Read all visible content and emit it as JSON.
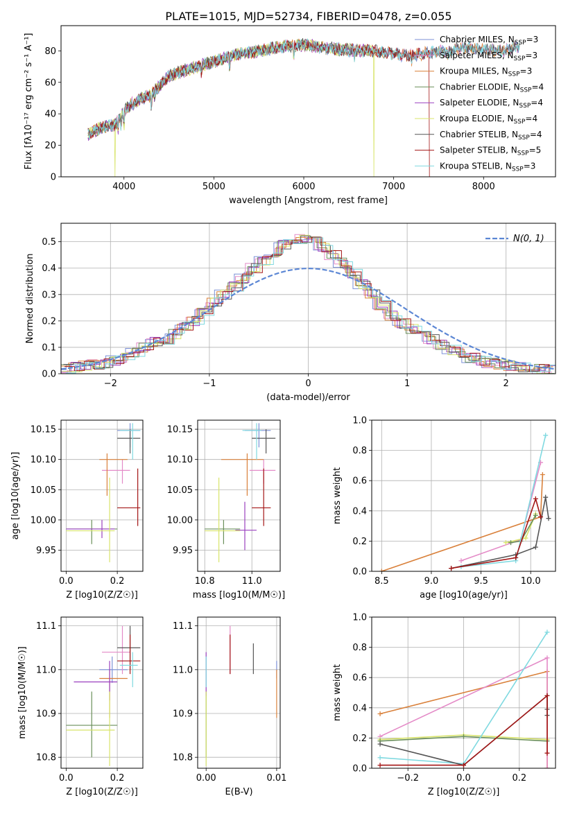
{
  "page_title": "PLATE=1015, MJD=52734, FIBERID=0478, z=0.055",
  "colors": {
    "Chabrier MILES": "#7b8fd6",
    "Salpeter MILES": "#e48ac7",
    "Kroupa MILES": "#d9803a",
    "Chabrier ELODIE": "#6a8f5a",
    "Salpeter ELODIE": "#9a3fbf",
    "Kroupa ELODIE": "#d8e46a",
    "Chabrier STELIB": "#555555",
    "Salpeter STELIB": "#a31515",
    "Kroupa STELIB": "#7fd9e0",
    "normal": "#5b86d4"
  },
  "legend_models": [
    {
      "key": "Chabrier MILES",
      "label": "Chabrier MILES, N",
      "sub": "SSP",
      "n": "=3"
    },
    {
      "key": "Salpeter MILES",
      "label": "Salpeter MILES, N",
      "sub": "SSP",
      "n": "=3"
    },
    {
      "key": "Kroupa MILES",
      "label": "Kroupa MILES, N",
      "sub": "SSP",
      "n": "=3"
    },
    {
      "key": "Chabrier ELODIE",
      "label": "Chabrier ELODIE, N",
      "sub": "SSP",
      "n": "=4"
    },
    {
      "key": "Salpeter ELODIE",
      "label": "Salpeter ELODIE, N",
      "sub": "SSP",
      "n": "=4"
    },
    {
      "key": "Kroupa ELODIE",
      "label": "Kroupa ELODIE, N",
      "sub": "SSP",
      "n": "=4"
    },
    {
      "key": "Chabrier STELIB",
      "label": "Chabrier STELIB, N",
      "sub": "SSP",
      "n": "=4"
    },
    {
      "key": "Salpeter STELIB",
      "label": "Salpeter STELIB, N",
      "sub": "SSP",
      "n": "=5"
    },
    {
      "key": "Kroupa STELIB",
      "label": "Kroupa STELIB, N",
      "sub": "SSP",
      "n": "=3"
    }
  ],
  "chart_data": [
    {
      "id": "spectrum",
      "type": "line",
      "xlabel": "wavelength [Angstrom, rest frame]",
      "ylabel": "Flux [fλ10⁻¹⁷ erg cm⁻² s⁻¹ A⁻¹]",
      "xlim": [
        3300,
        8800
      ],
      "ylim": [
        0,
        96
      ],
      "xticks": [
        4000,
        5000,
        6000,
        7000,
        8000
      ],
      "yticks": [
        0,
        20,
        40,
        60,
        80
      ],
      "grid": false,
      "legend": "right",
      "continuum": {
        "x": [
          3600,
          3700,
          3800,
          3900,
          4000,
          4100,
          4200,
          4300,
          4400,
          4500,
          4600,
          4800,
          5000,
          5200,
          5400,
          5600,
          5800,
          6000,
          6200,
          6400,
          6600,
          6800,
          7000,
          7200,
          7400,
          7600,
          7800,
          8000,
          8200,
          8400
        ],
        "y": [
          27,
          30,
          32,
          33,
          42,
          47,
          50,
          52,
          58,
          64,
          66,
          70,
          73,
          77,
          79,
          81,
          83,
          84,
          82,
          81,
          80,
          80,
          78,
          77,
          79,
          80,
          82,
          81,
          80,
          83
        ]
      },
      "dropouts": [
        {
          "model": "Kroupa ELODIE",
          "x": 3900,
          "x_end": 3900
        },
        {
          "model": "Kroupa ELODIE",
          "x": 6780,
          "x_end": 6780
        },
        {
          "model": "Salpeter STELIB",
          "x": 7400,
          "x_end": 7400
        }
      ],
      "model_end": {
        "Chabrier MILES": 8400,
        "Salpeter MILES": 8400,
        "Kroupa MILES": 8400,
        "Chabrier ELODIE": 6800,
        "Salpeter ELODIE": 6800,
        "Kroupa ELODIE": 6800,
        "Chabrier STELIB": 8400,
        "Salpeter STELIB": 7400,
        "Kroupa STELIB": 8400
      }
    },
    {
      "id": "residuals",
      "type": "line",
      "xlabel": "(data-model)/error",
      "ylabel": "Normed distribution",
      "xlim": [
        -2.5,
        2.5
      ],
      "ylim": [
        0,
        0.57
      ],
      "xticks": [
        -2,
        -1,
        0,
        1,
        2
      ],
      "yticks": [
        0.0,
        0.1,
        0.2,
        0.3,
        0.4,
        0.5
      ],
      "grid": true,
      "legend": "top-right",
      "normal_label": "N(0, 1)",
      "hist_edges": [
        -2.5,
        -2.4,
        -2.3,
        -2.2,
        -2.1,
        -2.0,
        -1.9,
        -1.8,
        -1.7,
        -1.6,
        -1.5,
        -1.4,
        -1.3,
        -1.2,
        -1.1,
        -1.0,
        -0.9,
        -0.8,
        -0.7,
        -0.6,
        -0.5,
        -0.4,
        -0.3,
        -0.2,
        -0.1,
        0.0,
        0.1,
        0.2,
        0.3,
        0.4,
        0.5,
        0.6,
        0.7,
        0.8,
        0.9,
        1.0,
        1.1,
        1.2,
        1.3,
        1.4,
        1.5,
        1.6,
        1.7,
        1.8,
        1.9,
        2.0,
        2.1,
        2.2,
        2.3,
        2.4,
        2.5
      ],
      "hist_base": [
        0.02,
        0.025,
        0.03,
        0.035,
        0.04,
        0.05,
        0.06,
        0.08,
        0.1,
        0.12,
        0.13,
        0.15,
        0.18,
        0.2,
        0.23,
        0.27,
        0.3,
        0.33,
        0.36,
        0.4,
        0.43,
        0.46,
        0.49,
        0.5,
        0.51,
        0.5,
        0.48,
        0.45,
        0.42,
        0.38,
        0.34,
        0.3,
        0.26,
        0.22,
        0.19,
        0.17,
        0.15,
        0.13,
        0.11,
        0.09,
        0.08,
        0.06,
        0.05,
        0.04,
        0.035,
        0.03,
        0.025,
        0.02,
        0.018,
        0.015
      ]
    },
    {
      "id": "age-vs-Z",
      "type": "scatter",
      "xlabel": "Z [log10(Z/Z☉)]",
      "ylabel": "age  [log10(age/yr)]",
      "xlim": [
        -0.02,
        0.3
      ],
      "ylim": [
        9.915,
        10.165
      ],
      "xticks": [
        0.0,
        0.2
      ],
      "yticks": [
        9.95,
        10.0,
        10.05,
        10.1,
        10.15
      ],
      "grid": true,
      "points": [
        {
          "model": "Chabrier MILES",
          "x": 0.25,
          "y": 10.148,
          "xerr": [
            0.2,
            0.29
          ],
          "yerr": [
            10.12,
            10.16
          ]
        },
        {
          "model": "Salpeter MILES",
          "x": 0.22,
          "y": 10.082,
          "xerr": [
            0.14,
            0.25
          ],
          "yerr": [
            10.06,
            10.1
          ]
        },
        {
          "model": "Kroupa MILES",
          "x": 0.16,
          "y": 10.1,
          "xerr": [
            0.13,
            0.24
          ],
          "yerr": [
            10.04,
            10.11
          ]
        },
        {
          "model": "Chabrier ELODIE",
          "x": 0.1,
          "y": 9.985,
          "xerr": [
            0.0,
            0.2
          ],
          "yerr": [
            9.96,
            10.0
          ]
        },
        {
          "model": "Salpeter ELODIE",
          "x": 0.14,
          "y": 9.985,
          "xerr": [
            0.0,
            0.19
          ],
          "yerr": [
            9.97,
            10.0
          ]
        },
        {
          "model": "Kroupa ELODIE",
          "x": 0.17,
          "y": 9.982,
          "xerr": [
            0.0,
            0.19
          ],
          "yerr": [
            9.93,
            10.07
          ]
        },
        {
          "model": "Chabrier STELIB",
          "x": 0.25,
          "y": 10.135,
          "xerr": [
            0.2,
            0.29
          ],
          "yerr": [
            10.11,
            10.15
          ]
        },
        {
          "model": "Salpeter STELIB",
          "x": 0.28,
          "y": 10.02,
          "xerr": [
            0.2,
            0.29
          ],
          "yerr": [
            9.99,
            10.085
          ]
        },
        {
          "model": "Kroupa STELIB",
          "x": 0.26,
          "y": 10.148,
          "xerr": [
            0.21,
            0.29
          ],
          "yerr": [
            10.1,
            10.16
          ]
        }
      ]
    },
    {
      "id": "age-vs-mass",
      "type": "scatter",
      "xlabel": "mass [log10(M/M☉)]",
      "ylabel": "",
      "xlim": [
        10.77,
        11.12
      ],
      "ylim": [
        9.915,
        10.165
      ],
      "xticks": [
        10.8,
        11.0
      ],
      "yticks": [
        9.95,
        10.0,
        10.05,
        10.1,
        10.15
      ],
      "grid": true,
      "points": [
        {
          "model": "Chabrier MILES",
          "x": 11.03,
          "y": 10.148,
          "xerr": [
            10.97,
            11.08
          ],
          "yerr": [
            10.12,
            10.16
          ]
        },
        {
          "model": "Salpeter MILES",
          "x": 11.05,
          "y": 10.082,
          "xerr": [
            10.99,
            11.1
          ],
          "yerr": [
            10.06,
            10.1
          ]
        },
        {
          "model": "Kroupa MILES",
          "x": 10.98,
          "y": 10.1,
          "xerr": [
            10.87,
            11.05
          ],
          "yerr": [
            10.04,
            10.11
          ]
        },
        {
          "model": "Chabrier ELODIE",
          "x": 10.88,
          "y": 9.985,
          "xerr": [
            10.8,
            10.95
          ],
          "yerr": [
            9.96,
            10.0
          ]
        },
        {
          "model": "Salpeter ELODIE",
          "x": 10.97,
          "y": 9.983,
          "xerr": [
            10.93,
            11.02
          ],
          "yerr": [
            9.95,
            10.03
          ]
        },
        {
          "model": "Kroupa ELODIE",
          "x": 10.86,
          "y": 9.982,
          "xerr": [
            10.8,
            10.95
          ],
          "yerr": [
            9.93,
            10.07
          ]
        },
        {
          "model": "Chabrier STELIB",
          "x": 11.06,
          "y": 10.135,
          "xerr": [
            11.0,
            11.1
          ],
          "yerr": [
            10.11,
            10.15
          ]
        },
        {
          "model": "Salpeter STELIB",
          "x": 11.05,
          "y": 10.02,
          "xerr": [
            11.0,
            11.08
          ],
          "yerr": [
            9.99,
            10.085
          ]
        },
        {
          "model": "Kroupa STELIB",
          "x": 11.02,
          "y": 10.148,
          "xerr": [
            10.96,
            11.04
          ],
          "yerr": [
            10.1,
            10.16
          ]
        }
      ]
    },
    {
      "id": "weight-vs-age",
      "type": "line",
      "xlabel": "age  [log10(age/yr)]",
      "ylabel": "mass weight",
      "xlim": [
        8.4,
        10.25
      ],
      "ylim": [
        0.0,
        1.0
      ],
      "xticks": [
        8.5,
        9.0,
        9.5,
        10.0
      ],
      "yticks": [
        0.0,
        0.2,
        0.4,
        0.6,
        0.8,
        1.0
      ],
      "grid": true,
      "series": [
        {
          "model": "Kroupa MILES",
          "x": [
            8.5,
            10.1,
            10.12
          ],
          "y": [
            0.0,
            0.36,
            0.64
          ]
        },
        {
          "model": "Salpeter MILES",
          "x": [
            9.3,
            9.9,
            10.1
          ],
          "y": [
            0.07,
            0.21,
            0.72
          ]
        },
        {
          "model": "Kroupa ELODIE",
          "x": [
            9.75,
            9.95,
            10.05
          ],
          "y": [
            0.19,
            0.22,
            0.38
          ]
        },
        {
          "model": "Chabrier ELODIE",
          "x": [
            9.8,
            9.9,
            10.05
          ],
          "y": [
            0.19,
            0.2,
            0.37
          ]
        },
        {
          "model": "Kroupa STELIB",
          "x": [
            9.3,
            9.85,
            10.15
          ],
          "y": [
            0.03,
            0.07,
            0.9
          ]
        },
        {
          "model": "Chabrier STELIB",
          "x": [
            9.2,
            9.85,
            10.05,
            10.15,
            10.18
          ],
          "y": [
            0.02,
            0.11,
            0.16,
            0.49,
            0.35
          ]
        },
        {
          "model": "Salpeter STELIB",
          "x": [
            9.2,
            9.85,
            10.05,
            10.1
          ],
          "y": [
            0.02,
            0.09,
            0.48,
            0.36
          ]
        }
      ]
    },
    {
      "id": "mass-vs-Z",
      "type": "scatter",
      "xlabel": "Z [log10(Z/Z☉)]",
      "ylabel": "mass [log10(M/M☉)]",
      "xlim": [
        -0.02,
        0.3
      ],
      "ylim": [
        10.775,
        11.12
      ],
      "xticks": [
        0.0,
        0.2
      ],
      "yticks": [
        10.8,
        10.9,
        11.0,
        11.1
      ],
      "grid": true,
      "points": [
        {
          "model": "Chabrier MILES",
          "x": 0.18,
          "y": 11.0,
          "xerr": [
            0.13,
            0.24
          ],
          "yerr": [
            10.97,
            11.03
          ]
        },
        {
          "model": "Salpeter MILES",
          "x": 0.22,
          "y": 11.04,
          "xerr": [
            0.14,
            0.25
          ],
          "yerr": [
            10.99,
            11.1
          ]
        },
        {
          "model": "Kroupa MILES",
          "x": 0.17,
          "y": 10.98,
          "xerr": [
            0.13,
            0.24
          ],
          "yerr": [
            10.89,
            11.0
          ]
        },
        {
          "model": "Chabrier ELODIE",
          "x": 0.1,
          "y": 10.873,
          "xerr": [
            0.0,
            0.2
          ],
          "yerr": [
            10.8,
            10.95
          ]
        },
        {
          "model": "Salpeter ELODIE",
          "x": 0.17,
          "y": 10.972,
          "xerr": [
            0.03,
            0.2
          ],
          "yerr": [
            10.93,
            11.02
          ]
        },
        {
          "model": "Kroupa ELODIE",
          "x": 0.17,
          "y": 10.862,
          "xerr": [
            0.0,
            0.19
          ],
          "yerr": [
            10.78,
            10.95
          ]
        },
        {
          "model": "Chabrier STELIB",
          "x": 0.25,
          "y": 11.05,
          "xerr": [
            0.2,
            0.29
          ],
          "yerr": [
            11.0,
            11.1
          ]
        },
        {
          "model": "Salpeter STELIB",
          "x": 0.25,
          "y": 11.02,
          "xerr": [
            0.2,
            0.29
          ],
          "yerr": [
            10.99,
            11.08
          ]
        },
        {
          "model": "Kroupa STELIB",
          "x": 0.26,
          "y": 11.01,
          "xerr": [
            0.21,
            0.28
          ],
          "yerr": [
            10.96,
            11.04
          ]
        }
      ]
    },
    {
      "id": "mass-vs-ebv",
      "type": "scatter",
      "xlabel": "E(B-V)",
      "ylabel": "",
      "xlim": [
        -0.0012,
        0.0105
      ],
      "ylim": [
        10.775,
        11.12
      ],
      "xticks": [
        0.0,
        0.01
      ],
      "yticks": [
        10.8,
        10.9,
        11.0,
        11.1
      ],
      "grid": true,
      "points": [
        {
          "model": "Chabrier MILES",
          "x": 0.01,
          "y": 11.0,
          "yerr": [
            10.98,
            11.02
          ]
        },
        {
          "model": "Salpeter MILES",
          "x": 0.0034,
          "y": 11.05,
          "yerr": [
            10.99,
            11.1
          ]
        },
        {
          "model": "Kroupa MILES",
          "x": 0.01,
          "y": 10.98,
          "yerr": [
            10.89,
            11.0
          ]
        },
        {
          "model": "Chabrier ELODIE",
          "x": 0.0,
          "y": 10.87,
          "yerr": [
            10.8,
            10.95
          ]
        },
        {
          "model": "Salpeter ELODIE",
          "x": 0.0,
          "y": 10.97,
          "yerr": [
            10.94,
            11.04
          ]
        },
        {
          "model": "Kroupa ELODIE",
          "x": 0.0,
          "y": 10.86,
          "yerr": [
            10.78,
            10.95
          ]
        },
        {
          "model": "Chabrier STELIB",
          "x": 0.0067,
          "y": 11.02,
          "yerr": [
            10.99,
            11.06
          ]
        },
        {
          "model": "Salpeter STELIB",
          "x": 0.0034,
          "y": 11.03,
          "yerr": [
            10.99,
            11.08
          ]
        },
        {
          "model": "Kroupa STELIB",
          "x": 0.0,
          "y": 11.0,
          "yerr": [
            10.96,
            11.03
          ]
        }
      ]
    },
    {
      "id": "weight-vs-Z",
      "type": "line",
      "xlabel": "Z [log10(Z/Z☉)]",
      "ylabel": "mass weight",
      "xlim": [
        -0.33,
        0.33
      ],
      "ylim": [
        0.0,
        1.0
      ],
      "xticks": [
        -0.2,
        0.0,
        0.2
      ],
      "yticks": [
        0.0,
        0.2,
        0.4,
        0.6,
        0.8,
        1.0
      ],
      "grid": true,
      "series": [
        {
          "model": "Kroupa MILES",
          "x": [
            -0.3,
            0.3,
            0.3
          ],
          "y": [
            0.36,
            0.64,
            0.0
          ]
        },
        {
          "model": "Salpeter MILES",
          "x": [
            -0.3,
            0.3,
            0.3
          ],
          "y": [
            0.21,
            0.73,
            0.0
          ]
        },
        {
          "model": "Kroupa ELODIE",
          "x": [
            -0.3,
            0.0,
            0.3
          ],
          "y": [
            0.19,
            0.22,
            0.19
          ]
        },
        {
          "model": "Chabrier ELODIE",
          "x": [
            -0.3,
            0.0,
            0.3
          ],
          "y": [
            0.18,
            0.21,
            0.18
          ]
        },
        {
          "model": "Kroupa STELIB",
          "x": [
            -0.3,
            0.0,
            0.3
          ],
          "y": [
            0.07,
            0.03,
            0.9
          ]
        },
        {
          "model": "Chabrier STELIB",
          "x": [
            -0.3,
            0.0,
            0.3,
            0.3,
            0.3
          ],
          "y": [
            0.16,
            0.02,
            0.48,
            0.39,
            0.35
          ]
        },
        {
          "model": "Salpeter STELIB",
          "x": [
            -0.3,
            0.0,
            0.3,
            0.3
          ],
          "y": [
            0.02,
            0.02,
            0.48,
            0.1
          ]
        }
      ]
    }
  ]
}
